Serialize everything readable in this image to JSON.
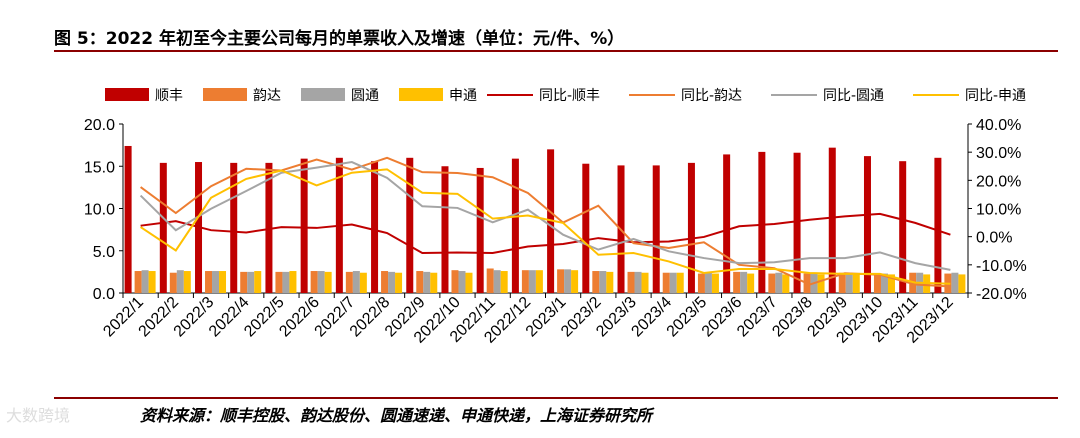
{
  "title": "图 5：2022 年初至今主要公司每月的单票收入及增速（单位：元/件、%）",
  "source": "资料来源：顺丰控股、韵达股份、圆通速递、申通快递，上海证券研究所",
  "watermark": "大数跨境",
  "chart_data": {
    "type": "bar+line",
    "categories": [
      "2022/1",
      "2022/2",
      "2022/3",
      "2022/4",
      "2022/5",
      "2022/6",
      "2022/7",
      "2022/8",
      "2022/9",
      "2022/10",
      "2022/11",
      "2022/12",
      "2023/1",
      "2023/2",
      "2023/3",
      "2023/4",
      "2023/5",
      "2023/6",
      "2023/7",
      "2023/8",
      "2023/9",
      "2023/10",
      "2023/11",
      "2023/12"
    ],
    "left_axis": {
      "ylim": [
        0,
        20
      ],
      "ticks": [
        "0.0",
        "5.0",
        "10.0",
        "15.0",
        "20.0"
      ]
    },
    "right_axis": {
      "ylim": [
        -20,
        40
      ],
      "ticks": [
        "-20.0%",
        "-10.0%",
        "0.0%",
        "10.0%",
        "20.0%",
        "30.0%",
        "40.0%"
      ]
    },
    "legend_position": "top",
    "grid": false,
    "bar_series": [
      {
        "name": "顺丰",
        "color": "#c00000",
        "values": [
          17.4,
          15.4,
          15.5,
          15.4,
          15.4,
          15.9,
          16.0,
          15.6,
          16.0,
          15.0,
          14.8,
          15.9,
          17.0,
          15.3,
          15.1,
          15.1,
          15.4,
          16.4,
          16.7,
          16.6,
          17.2,
          16.2,
          15.6,
          16.0
        ]
      },
      {
        "name": "韵达",
        "color": "#ed7d31",
        "values": [
          2.6,
          2.4,
          2.6,
          2.5,
          2.5,
          2.6,
          2.5,
          2.6,
          2.6,
          2.7,
          2.9,
          2.7,
          2.8,
          2.6,
          2.5,
          2.4,
          2.3,
          2.5,
          2.3,
          2.3,
          2.4,
          2.3,
          2.4,
          2.3
        ]
      },
      {
        "name": "圆通",
        "color": "#a5a5a5",
        "values": [
          2.7,
          2.7,
          2.6,
          2.5,
          2.5,
          2.6,
          2.6,
          2.5,
          2.5,
          2.6,
          2.7,
          2.7,
          2.8,
          2.6,
          2.5,
          2.4,
          2.4,
          2.5,
          2.4,
          2.3,
          2.4,
          2.3,
          2.4,
          2.4
        ]
      },
      {
        "name": "申通",
        "color": "#ffc000",
        "values": [
          2.6,
          2.6,
          2.6,
          2.6,
          2.6,
          2.5,
          2.4,
          2.4,
          2.4,
          2.4,
          2.6,
          2.7,
          2.7,
          2.5,
          2.4,
          2.4,
          2.3,
          2.3,
          2.2,
          2.2,
          2.2,
          2.2,
          2.2,
          2.2
        ]
      }
    ],
    "line_series": [
      {
        "name": "同比-顺丰",
        "color": "#c00000",
        "values": [
          3.9,
          5.5,
          2.3,
          1.5,
          3.4,
          3.1,
          4.3,
          1.3,
          -5.8,
          -5.6,
          -5.8,
          -3.5,
          -2.6,
          -0.5,
          -2.0,
          -1.7,
          -0.1,
          3.7,
          4.5,
          6.0,
          7.2,
          8.1,
          4.9,
          0.7
        ]
      },
      {
        "name": "同比-韵达",
        "color": "#ed7d31",
        "values": [
          17.6,
          8.4,
          17.9,
          24.1,
          23.5,
          27.4,
          23.8,
          28.0,
          22.9,
          22.6,
          21.1,
          15.5,
          5.0,
          11.0,
          -2.3,
          -4.0,
          -2.0,
          -10.0,
          -11.2,
          -17.0,
          -13.0,
          -13.5,
          -17.0,
          -17.7
        ]
      },
      {
        "name": "同比-圆通",
        "color": "#a5a5a5",
        "values": [
          14.6,
          2.3,
          9.9,
          16.2,
          22.7,
          24.5,
          26.5,
          20.9,
          10.8,
          10.2,
          5.1,
          9.6,
          0.7,
          -4.6,
          -0.8,
          -5.2,
          -7.6,
          -9.4,
          -9.1,
          -7.6,
          -7.6,
          -5.6,
          -9.4,
          -11.8
        ]
      },
      {
        "name": "同比-申通",
        "color": "#ffc000",
        "values": [
          3.4,
          -4.9,
          13.8,
          20.5,
          23.5,
          18.2,
          22.7,
          23.9,
          15.6,
          15.2,
          6.4,
          7.5,
          4.9,
          -6.4,
          -5.8,
          -8.8,
          -12.9,
          -11.5,
          -11.5,
          -12.9,
          -13.2,
          -13.2,
          -16.3,
          -16.7
        ]
      }
    ]
  }
}
